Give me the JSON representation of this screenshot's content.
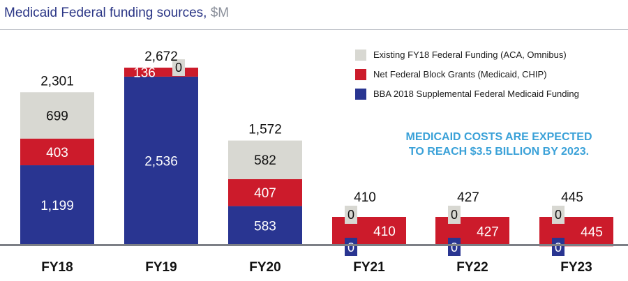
{
  "header": {
    "title": "Medicaid Federal funding sources,",
    "unit": "$M"
  },
  "legend": [
    {
      "label": "Existing FY18 Federal Funding (ACA, Omnibus)",
      "color": "#d8d8d2"
    },
    {
      "label": "Net Federal Block Grants (Medicaid, CHIP)",
      "color": "#cc1b2b"
    },
    {
      "label": "BBA 2018 Supplemental Federal Medicaid Funding",
      "color": "#293591"
    }
  ],
  "note": {
    "line1": "MEDICAID COSTS ARE EXPECTED",
    "line2": "TO REACH $3.5 BILLION BY 2023."
  },
  "chart_data": {
    "type": "bar",
    "stacked": true,
    "title": "Medicaid Federal funding sources, $M",
    "categories": [
      "FY18",
      "FY19",
      "FY20",
      "FY21",
      "FY22",
      "FY23"
    ],
    "series": [
      {
        "name": "BBA 2018 Supplemental Federal Medicaid Funding",
        "values": [
          1199,
          2536,
          583,
          0,
          0,
          0
        ],
        "color": "#293591"
      },
      {
        "name": "Net Federal Block Grants (Medicaid, CHIP)",
        "values": [
          403,
          136,
          407,
          410,
          427,
          445
        ],
        "color": "#cc1b2b"
      },
      {
        "name": "Existing FY18 Federal Funding (ACA, Omnibus)",
        "values": [
          699,
          0,
          582,
          0,
          0,
          0
        ],
        "color": "#d8d8d2"
      }
    ],
    "totals": [
      "2,301",
      "2,672",
      "1,572",
      "410",
      "427",
      "445"
    ],
    "labels": {
      "bottom": [
        "1,199",
        "2,536",
        "583",
        "0",
        "0",
        "0"
      ],
      "middle": [
        "403",
        "136",
        "407",
        "410",
        "427",
        "445"
      ],
      "top": [
        "699",
        "0",
        "582",
        "0",
        "0",
        "0"
      ]
    },
    "ylim": [
      0,
      2672
    ],
    "grid": false,
    "legend_position": "top-right"
  }
}
